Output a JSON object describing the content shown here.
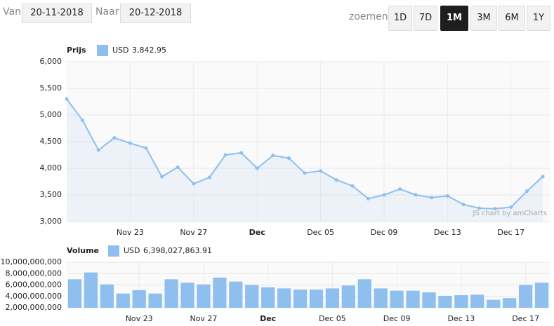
{
  "controls": {
    "from_label": "Van",
    "from": "20-11-2018",
    "to_label": "Naar",
    "to": "20-12-2018",
    "zoom_label": "zoemen",
    "zoom": [
      "1D",
      "7D",
      "1M",
      "3M",
      "6M",
      "1Y"
    ],
    "active_zoom": "1M"
  },
  "credit": "JS chart by amCharts",
  "chart_data": [
    {
      "type": "line",
      "title": "Prijs",
      "categories": [
        null,
        null,
        null,
        null,
        "Nov 23",
        null,
        null,
        null,
        "Nov 27",
        null,
        null,
        null,
        "Dec",
        null,
        null,
        null,
        "Dec 05",
        null,
        null,
        null,
        "Dec 09",
        null,
        null,
        null,
        "Dec 13",
        null,
        null,
        null,
        "Dec 17",
        null,
        null
      ],
      "series": [
        {
          "name": "USD",
          "color": "#8ebfee",
          "legend_value_label": "3,842.95",
          "values": [
            5300,
            4900,
            4340,
            4570,
            4470,
            4380,
            3840,
            4020,
            3710,
            3830,
            4250,
            4290,
            4000,
            4240,
            4190,
            3910,
            3950,
            3780,
            3670,
            3430,
            3500,
            3610,
            3500,
            3450,
            3480,
            3320,
            3250,
            3240,
            3270,
            3570,
            3842.95
          ]
        }
      ],
      "ylim": [
        3000,
        6000
      ],
      "yticks": [
        {
          "value": 3000,
          "label": "3,000"
        },
        {
          "value": 3500,
          "label": "3,500"
        },
        {
          "value": 4000,
          "label": "4,000"
        },
        {
          "value": 4500,
          "label": "4,500"
        },
        {
          "value": 5000,
          "label": "5,000"
        },
        {
          "value": 5500,
          "label": "5,500"
        },
        {
          "value": 6000,
          "label": "6,000"
        }
      ],
      "grid": true
    },
    {
      "type": "bar",
      "title": "Volume",
      "categories": [
        null,
        null,
        null,
        null,
        "Nov 23",
        null,
        null,
        null,
        "Nov 27",
        null,
        null,
        null,
        "Dec",
        null,
        null,
        null,
        "Dec 05",
        null,
        null,
        null,
        "Dec 09",
        null,
        null,
        null,
        "Dec 13",
        null,
        null,
        null,
        "Dec 17",
        null
      ],
      "series": [
        {
          "name": "USD",
          "color": "#8ebfee",
          "legend_value_label": "6,398,027,863.91",
          "values": [
            7000000000,
            8200000000,
            6100000000,
            4500000000,
            5100000000,
            4500000000,
            7000000000,
            6400000000,
            6100000000,
            7300000000,
            6600000000,
            6000000000,
            5600000000,
            5400000000,
            5200000000,
            5200000000,
            5400000000,
            5900000000,
            7000000000,
            5400000000,
            5000000000,
            5000000000,
            4700000000,
            4100000000,
            4200000000,
            4300000000,
            3400000000,
            3700000000,
            6000000000,
            6398027863.91
          ]
        }
      ],
      "ylim": [
        2000000000,
        10000000000
      ],
      "yticks": [
        {
          "value": 2000000000,
          "label": "2,000,000,000"
        },
        {
          "value": 4000000000,
          "label": "4,000,000,000"
        },
        {
          "value": 6000000000,
          "label": "6,000,000,000"
        },
        {
          "value": 8000000000,
          "label": "8,000,000,000"
        },
        {
          "value": 10000000000,
          "label": "10,000,000,000"
        }
      ],
      "grid": true
    }
  ]
}
